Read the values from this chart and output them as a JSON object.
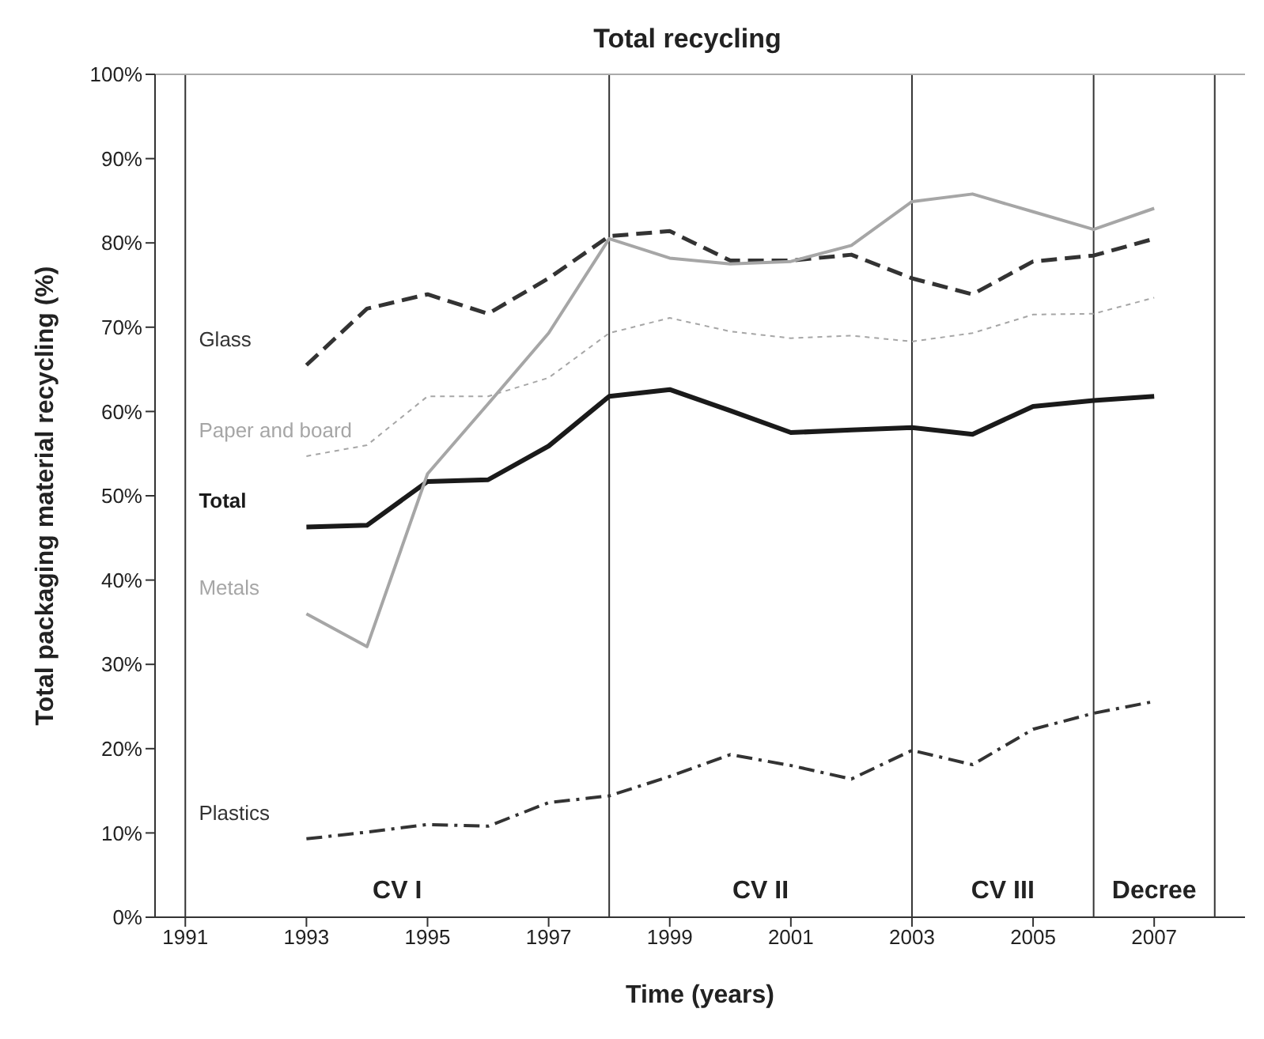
{
  "chart_data": {
    "type": "line",
    "title": "Total recycling",
    "xlabel": "Time (years)",
    "ylabel": "Total packaging material recycling (%)",
    "x": [
      1993,
      1994,
      1995,
      1996,
      1997,
      1998,
      1999,
      2000,
      2001,
      2002,
      2003,
      2004,
      2005,
      2006,
      2007
    ],
    "series": [
      {
        "name": "Glass",
        "color": "#333333",
        "line_style": "dashed",
        "values": [
          65.5,
          72.2,
          73.9,
          71.6,
          75.8,
          80.8,
          81.4,
          77.9,
          77.9,
          78.6,
          75.8,
          73.9,
          77.8,
          78.5,
          80.5
        ]
      },
      {
        "name": "Paper and board",
        "color": "#a6a6a6",
        "line_style": "dotted",
        "values": [
          54.7,
          56.0,
          61.8,
          61.8,
          64.0,
          69.3,
          71.1,
          69.5,
          68.7,
          69.0,
          68.3,
          69.3,
          71.5,
          71.6,
          73.5
        ]
      },
      {
        "name": "Total",
        "color": "#1a1a1a",
        "line_style": "solid",
        "values": [
          46.3,
          46.5,
          51.7,
          51.9,
          55.9,
          61.8,
          62.6,
          60.1,
          57.5,
          57.8,
          58.1,
          57.3,
          60.6,
          61.3,
          61.8
        ]
      },
      {
        "name": "Metals",
        "color": "#a6a6a6",
        "line_style": "solid",
        "values": [
          36.0,
          32.1,
          52.6,
          60.9,
          69.3,
          80.5,
          78.2,
          77.5,
          77.8,
          79.7,
          84.9,
          85.8,
          83.7,
          81.6,
          84.1
        ]
      },
      {
        "name": "Plastics",
        "color": "#333333",
        "line_style": "dashdot",
        "values": [
          9.3,
          10.1,
          11.0,
          10.8,
          13.6,
          14.4,
          16.7,
          19.3,
          18.0,
          16.4,
          19.8,
          18.1,
          22.3,
          24.2,
          25.6
        ]
      }
    ],
    "xlim": [
      1990.5,
      2008.5
    ],
    "xticks": [
      1991,
      1993,
      1995,
      1997,
      1999,
      2001,
      2003,
      2005,
      2007
    ],
    "ylim": [
      0,
      100
    ],
    "yticks": [
      {
        "value": 0,
        "label": "0%"
      },
      {
        "value": 10,
        "label": "10%"
      },
      {
        "value": 20,
        "label": "20%"
      },
      {
        "value": 30,
        "label": "30%"
      },
      {
        "value": 40,
        "label": "40%"
      },
      {
        "value": 50,
        "label": "50%"
      },
      {
        "value": 60,
        "label": "60%"
      },
      {
        "value": 70,
        "label": "70%"
      },
      {
        "value": 80,
        "label": "80%"
      },
      {
        "value": 90,
        "label": "90%"
      },
      {
        "value": 100,
        "label": "100%"
      }
    ],
    "ref_lines": [
      {
        "axis": "x",
        "value": 1991,
        "color": "#333333"
      },
      {
        "axis": "x",
        "value": 1998,
        "color": "#333333"
      },
      {
        "axis": "x",
        "value": 2003,
        "color": "#333333"
      },
      {
        "axis": "x",
        "value": 2006,
        "color": "#333333"
      },
      {
        "axis": "x",
        "value": 2008,
        "color": "#333333"
      }
    ],
    "annotations": [
      "CV I",
      "CV II",
      "CV III",
      "Decree"
    ],
    "grid": false,
    "legend": false,
    "marker": "none"
  }
}
